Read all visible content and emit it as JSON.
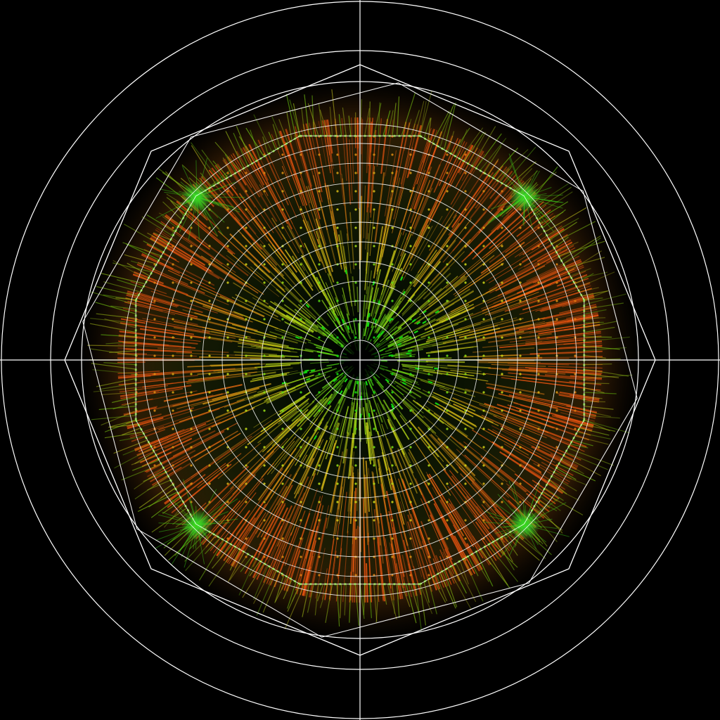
{
  "scene": {
    "background_color": "#000000",
    "grid_color": "#ffffff",
    "outer_ring_count": 3,
    "inner_ring_count": 12,
    "octagon_count": 3,
    "crosshair": true,
    "polygon_sides_a": 8,
    "polygon_sides_b": 12,
    "palette": {
      "center": "#11d611",
      "mid": "#c7d617",
      "edge": "#e0510f",
      "rim": "#62c20f"
    },
    "glow_spots": 4,
    "style": "radial vector field"
  }
}
